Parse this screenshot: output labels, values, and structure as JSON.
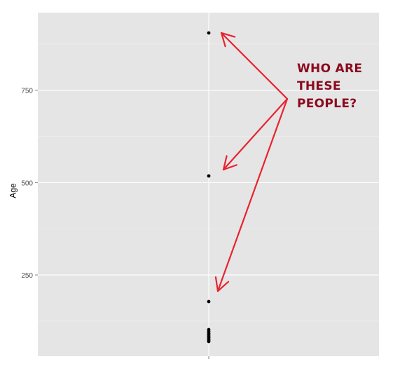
{
  "chart_data": {
    "type": "scatter",
    "title": "",
    "xlabel": "",
    "ylabel": "Age",
    "ylim": [
      30,
      960
    ],
    "y_ticks": [
      250,
      500,
      750
    ],
    "x_ticks": [
      ""
    ],
    "grid": true,
    "background": "#e5e5e5",
    "gridline_color": "#ffffff",
    "point_color": "#000000",
    "points": [
      {
        "x": 1,
        "y": 905
      },
      {
        "x": 1,
        "y": 518
      },
      {
        "x": 1,
        "y": 178
      },
      {
        "x": 1,
        "y": 102
      },
      {
        "x": 1,
        "y": 97
      },
      {
        "x": 1,
        "y": 92
      },
      {
        "x": 1,
        "y": 88
      },
      {
        "x": 1,
        "y": 84
      },
      {
        "x": 1,
        "y": 80
      },
      {
        "x": 1,
        "y": 76
      },
      {
        "x": 1,
        "y": 73
      },
      {
        "x": 1,
        "y": 70
      }
    ],
    "annotation": {
      "lines": [
        "WHO ARE",
        "THESE",
        "PEOPLE?"
      ],
      "color": "#8b0a1e",
      "arrow_color": "#e8232f",
      "arrow_targets_y": [
        905,
        518,
        178
      ]
    }
  }
}
